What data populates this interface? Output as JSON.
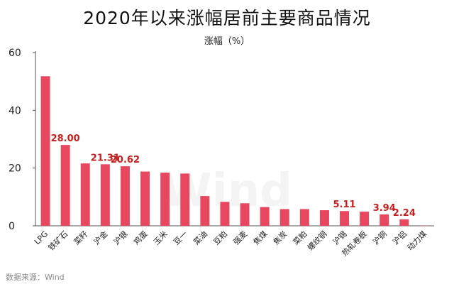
{
  "chart_data": {
    "type": "bar",
    "title": "2020年以来涨幅居前主要商品情况",
    "unit_label": "涨幅（%）",
    "source": "数据来源：Wind",
    "watermark": "Wind",
    "categories": [
      "LPG",
      "铁矿石",
      "菜籽",
      "沪金",
      "沪银",
      "鸡蛋",
      "玉米",
      "豆一",
      "菜油",
      "豆粕",
      "强麦",
      "焦煤",
      "焦炭",
      "菜粕",
      "螺纹钢",
      "沪锡",
      "热轧卷板",
      "沪铜",
      "沪铝",
      "动力煤"
    ],
    "values": [
      51.8,
      28.0,
      21.6,
      21.31,
      20.62,
      18.8,
      18.4,
      18.1,
      10.3,
      8.3,
      7.8,
      6.5,
      5.8,
      5.8,
      5.4,
      5.11,
      4.9,
      3.94,
      2.24,
      0.05
    ],
    "data_labels": [
      {
        "category": "铁矿石",
        "text": "28.00"
      },
      {
        "category": "沪金",
        "text": "21.31"
      },
      {
        "category": "沪银",
        "text": "20.62"
      },
      {
        "category": "沪锡",
        "text": "5.11"
      },
      {
        "category": "沪铜",
        "text": "3.94"
      },
      {
        "category": "沪铝",
        "text": "2.24"
      }
    ],
    "yticks": [
      "0",
      "20",
      "40",
      "60"
    ],
    "ylim": [
      0,
      60
    ],
    "grid": false,
    "legend": "none",
    "bar_color": "#E8485F",
    "label_color": "#C81E1E"
  }
}
